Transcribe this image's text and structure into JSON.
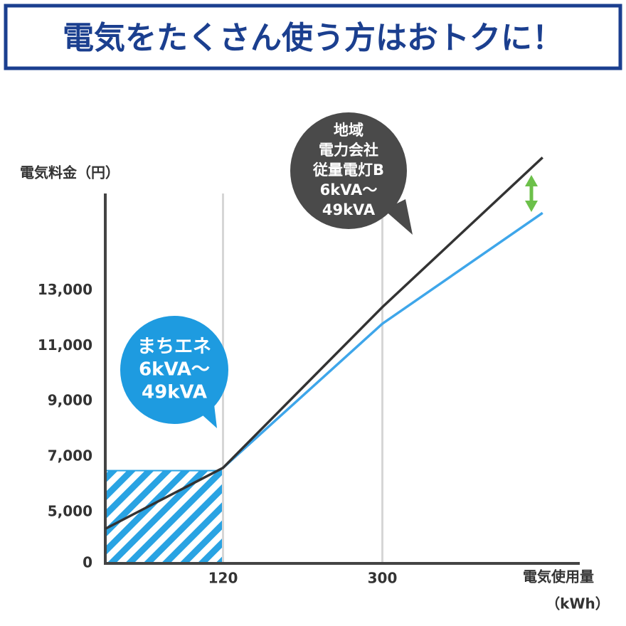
{
  "chart_data": {
    "type": "line",
    "title": "電気をたくさん使う方はおトクに！",
    "ylabel": "電気料金（円）",
    "xlabel": "電気使用量",
    "xunit": "（kWh）",
    "xlim": [
      -13,
      523
    ],
    "xticks": [
      120,
      300
    ],
    "ylim": [
      0,
      16500
    ],
    "yticks": [
      0,
      {
        "value": 5000,
        "label": "5,000"
      },
      {
        "value": 7000,
        "label": "7,000"
      },
      {
        "value": 9000,
        "label": "9,000"
      },
      {
        "value": 11000,
        "label": "11,000"
      },
      {
        "value": 13000,
        "label": "13,000"
      }
    ],
    "y_axis_break": true,
    "grid": true,
    "flat_rate_area": {
      "x": [
        -13,
        120
      ],
      "value": 6500,
      "color": "#29a3e3"
    },
    "series": [
      {
        "name": "まちエネ 6kVA〜49kVA",
        "color": "#3ea6ea",
        "x": [
          120,
          300,
          481
        ],
        "values": [
          6600,
          11800,
          15800
        ]
      },
      {
        "name": "地域電力会社 従量電灯B 6kVA〜49kVA",
        "color": "#333333",
        "x": [
          -13,
          120,
          300,
          481
        ],
        "values": [
          4400,
          6600,
          12400,
          17800
        ]
      }
    ],
    "bubbles": [
      {
        "lines": [
          "まちエネ",
          "6kVA〜",
          "49kVA"
        ],
        "color": "#1e9be0"
      },
      {
        "lines": [
          "地域",
          "電力会社",
          "従量電灯B",
          "6kVA〜",
          "49kVA"
        ],
        "color": "#4a4a4a"
      }
    ]
  }
}
